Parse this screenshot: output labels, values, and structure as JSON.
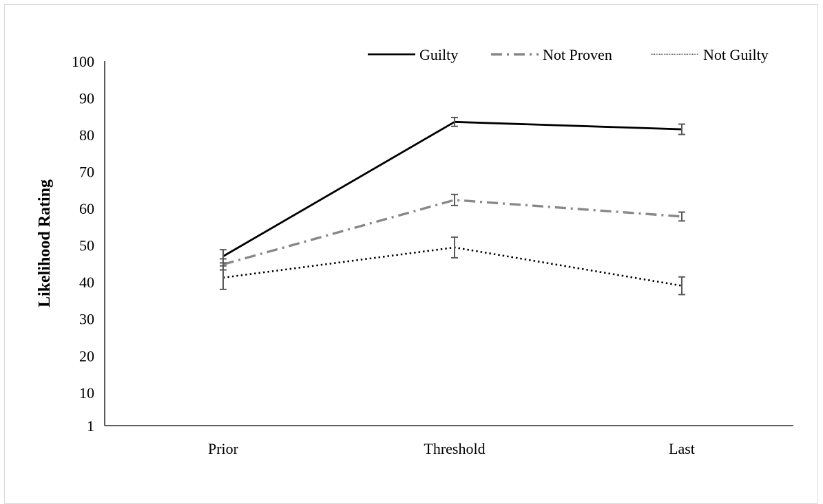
{
  "chart_data": {
    "type": "line",
    "title": "",
    "xlabel": "",
    "ylabel": "Likelihood Rating",
    "categories": [
      "Prior",
      "Threshold",
      "Last"
    ],
    "y_ticks": [
      "1",
      "10",
      "20",
      "30",
      "40",
      "50",
      "60",
      "70",
      "80",
      "90",
      "100"
    ],
    "ylim": [
      1,
      100
    ],
    "grid": false,
    "legend_position": "top-right",
    "series": [
      {
        "name": "Guilty",
        "values": [
          47,
          83.5,
          81.5
        ],
        "error": [
          1.8,
          1.2,
          1.4
        ],
        "color": "#000000",
        "line_style": "solid"
      },
      {
        "name": "Not Proven",
        "values": [
          44.8,
          62.3,
          57.8
        ],
        "error": [
          1.5,
          1.5,
          1.2
        ],
        "color": "#888888",
        "line_style": "dash-dot"
      },
      {
        "name": "Not Guilty",
        "values": [
          41.2,
          49.4,
          39
        ],
        "error": [
          3.2,
          2.8,
          2.4
        ],
        "color": "#000000",
        "line_style": "dotted"
      }
    ],
    "error_bar_color": "#595959"
  }
}
